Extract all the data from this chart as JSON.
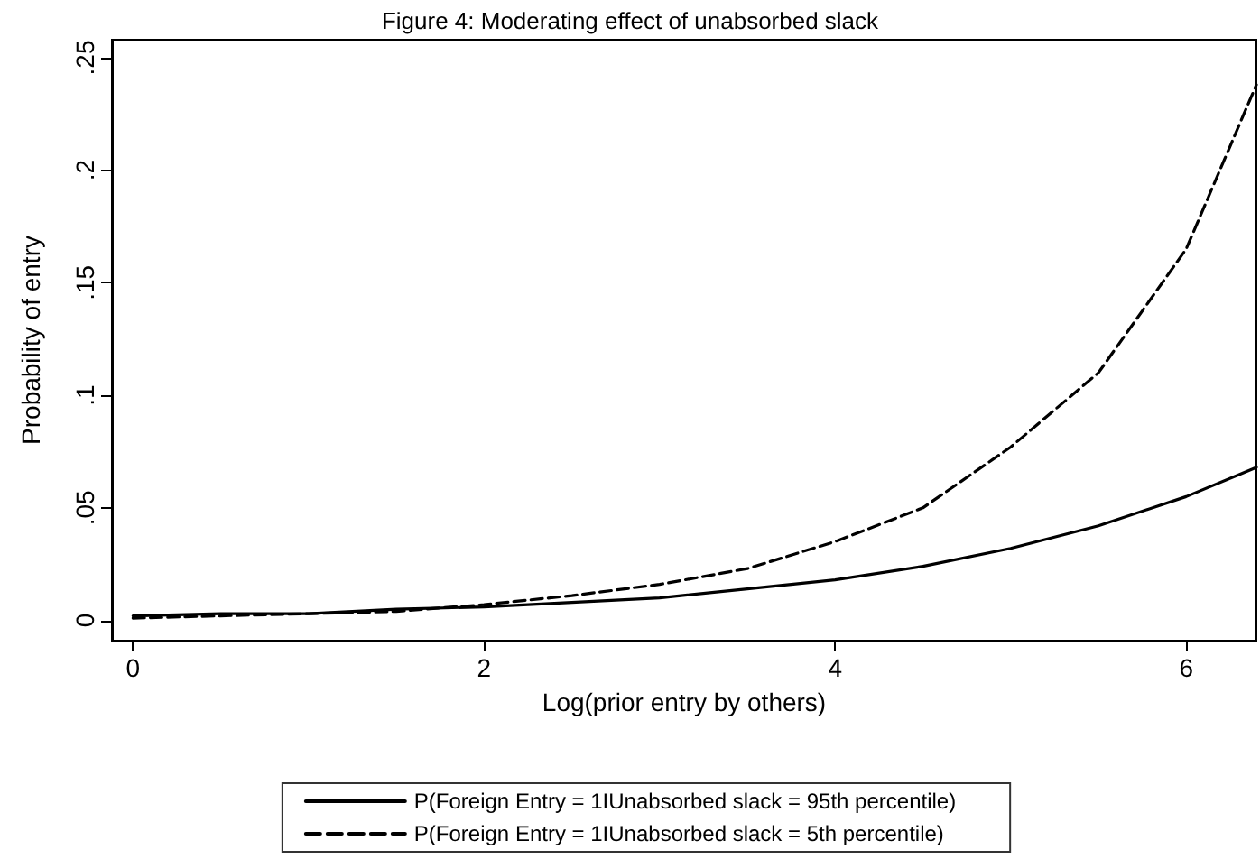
{
  "chart_data": {
    "type": "line",
    "title": "Figure 4: Moderating effect of unabsorbed slack",
    "xlabel": "Log(prior entry by others)",
    "ylabel": "Probability of entry",
    "x": [
      0,
      0.5,
      1,
      1.5,
      2,
      2.5,
      3,
      3.5,
      4,
      4.5,
      5,
      5.5,
      6,
      6.4
    ],
    "series": [
      {
        "name": "P(Foreign Entry = 1IUnabsorbed slack = 95th percentile)",
        "color": "#000000",
        "line_style": "solid",
        "values": [
          0.002,
          0.003,
          0.003,
          0.005,
          0.006,
          0.008,
          0.01,
          0.014,
          0.018,
          0.024,
          0.032,
          0.042,
          0.055,
          0.068
        ]
      },
      {
        "name": "P(Foreign Entry = 1IUnabsorbed slack = 5th percentile)",
        "color": "#000000",
        "line_style": "dashed",
        "values": [
          0.001,
          0.002,
          0.003,
          0.004,
          0.007,
          0.011,
          0.016,
          0.023,
          0.035,
          0.05,
          0.077,
          0.11,
          0.165,
          0.238
        ]
      }
    ],
    "xlim": [
      -0.12,
      6.4
    ],
    "xticks": [
      0,
      2,
      4,
      6
    ],
    "ylim": [
      -0.009,
      0.258
    ],
    "yticks": [
      0,
      {
        "value": 0.05,
        "label": ".05"
      },
      {
        "value": 0.1,
        "label": ".1"
      },
      {
        "value": 0.15,
        "label": ".15"
      },
      {
        "value": 0.2,
        "label": ".2"
      },
      {
        "value": 0.25,
        "label": ".25"
      }
    ],
    "grid": false,
    "legend": "bottom",
    "marker": "none"
  }
}
